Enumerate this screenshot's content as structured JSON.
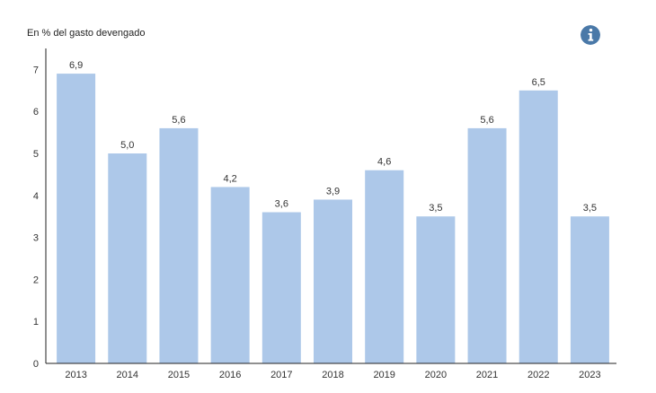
{
  "header": {
    "ylabel_text": "En % del gasto devengado"
  },
  "icons": {
    "info": "info-icon"
  },
  "colors": {
    "bar": "#adc8e9",
    "axis": "#222222",
    "text": "#333333",
    "info_icon": "#4a79a8"
  },
  "chart_data": {
    "type": "bar",
    "title": "",
    "xlabel": "",
    "ylabel": "En % del gasto devengado",
    "categories": [
      "2013",
      "2014",
      "2015",
      "2016",
      "2017",
      "2018",
      "2019",
      "2020",
      "2021",
      "2022",
      "2023"
    ],
    "values": [
      6.9,
      5.0,
      5.6,
      4.2,
      3.6,
      3.9,
      4.6,
      3.5,
      5.6,
      6.5,
      3.5
    ],
    "value_labels": [
      "6,9",
      "5,0",
      "5,6",
      "4,2",
      "3,6",
      "3,9",
      "4,6",
      "3,5",
      "5,6",
      "6,5",
      "3,5"
    ],
    "ylim": [
      0,
      7.5
    ],
    "yticks": [
      0,
      1,
      2,
      3,
      4,
      5,
      6,
      7
    ],
    "grid": false,
    "legend": "none"
  }
}
